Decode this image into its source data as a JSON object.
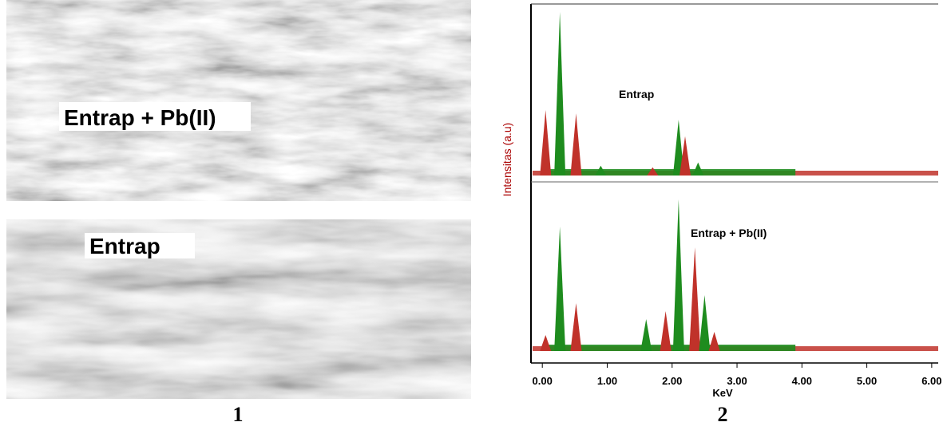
{
  "left_panel": {
    "images": [
      {
        "label": "Entrap + Pb(II)"
      },
      {
        "label": "Entrap"
      }
    ],
    "caption": "1"
  },
  "right_panel": {
    "caption": "2",
    "chart_data": {
      "type": "spectrum",
      "x_label": "KeV",
      "y_label": "Intensitas (a.u)",
      "xlim": [
        -0.15,
        6.1
      ],
      "xticks": [
        {
          "value": 0,
          "label": "0.00"
        },
        {
          "value": 1,
          "label": "1.00"
        },
        {
          "value": 2,
          "label": "2.00"
        },
        {
          "value": 3,
          "label": "3.00"
        },
        {
          "value": 4,
          "label": "4.00"
        },
        {
          "value": 5,
          "label": "5.00"
        },
        {
          "value": 6,
          "label": "6.00"
        }
      ],
      "series": [
        {
          "name": "Entrap",
          "color": "#1e8c1e",
          "peak_color": "#c0322a",
          "x": [
            0.05,
            0.27,
            0.52,
            0.9,
            1.7,
            2.1,
            2.2,
            2.4
          ],
          "values": [
            40,
            100,
            38,
            6,
            5,
            34,
            24,
            8
          ]
        },
        {
          "name": "Entrap + Pb(II)",
          "color": "#1e8c1e",
          "peak_color": "#c0322a",
          "x": [
            0.05,
            0.27,
            0.52,
            1.6,
            1.9,
            2.1,
            2.35,
            2.5,
            2.65
          ],
          "values": [
            10,
            78,
            30,
            20,
            25,
            95,
            65,
            35,
            12
          ]
        }
      ]
    }
  }
}
